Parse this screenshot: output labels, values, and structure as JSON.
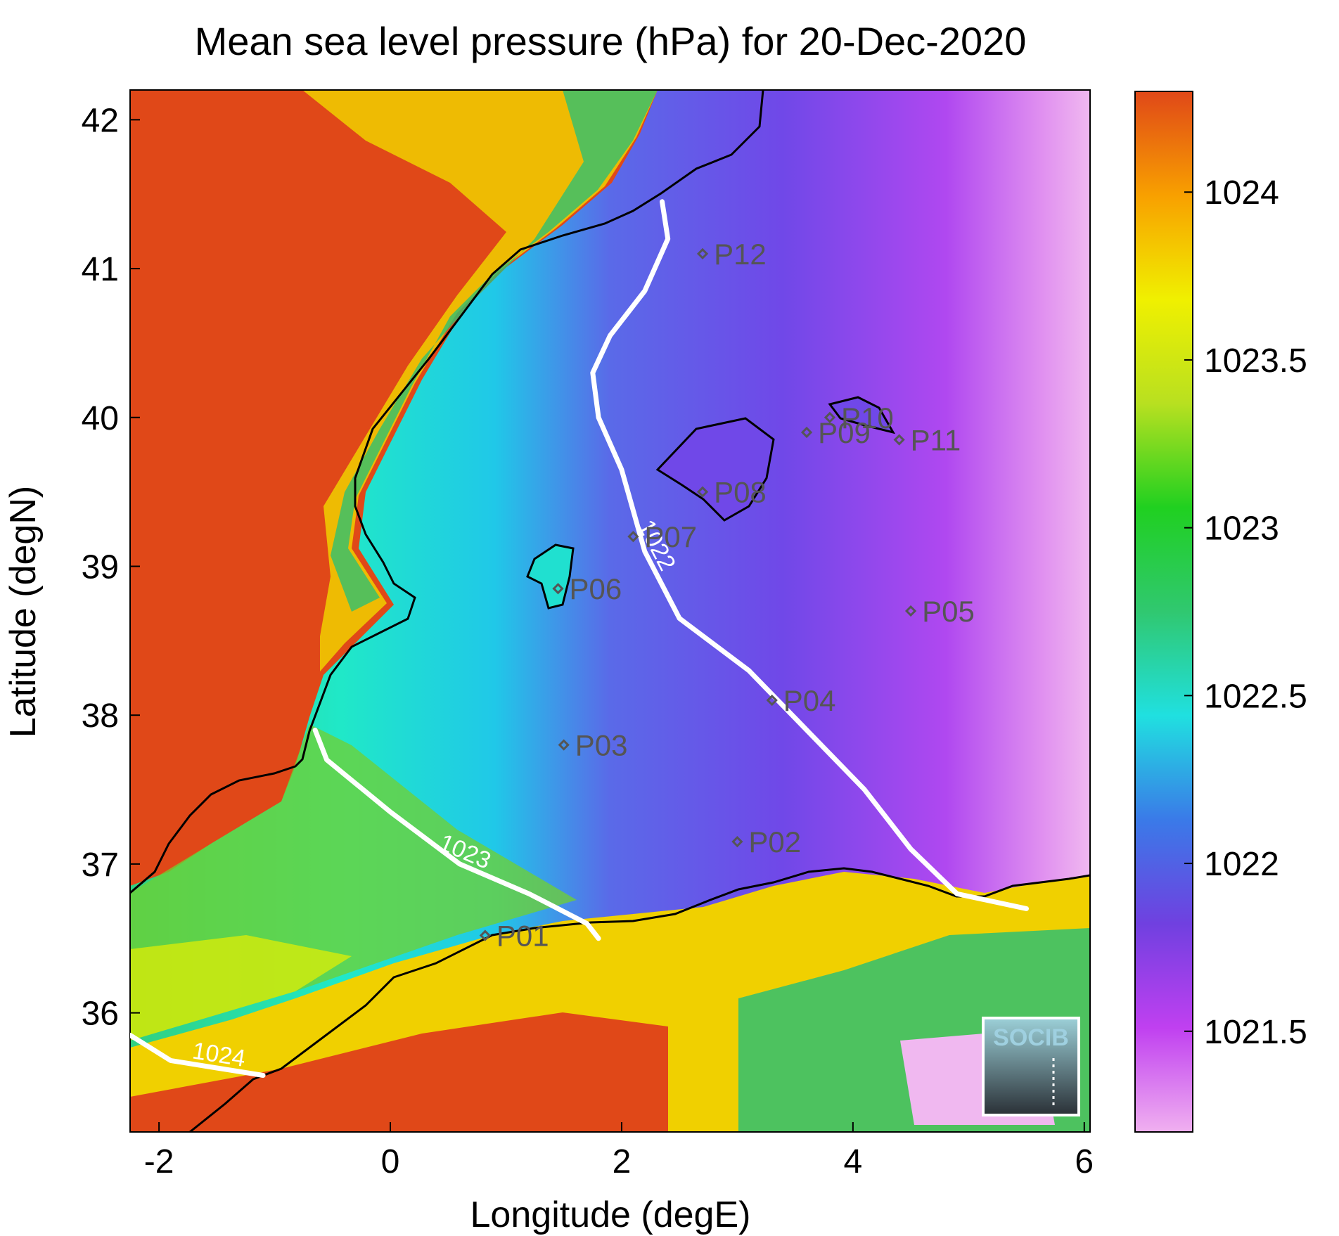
{
  "chart_data": {
    "type": "heatmap",
    "title": "Mean sea level pressure (hPa) for 20-Dec-2020",
    "xlabel": "Longitude (degE)",
    "ylabel": "Latitude (degN)",
    "xlim": [
      -2.25,
      6.05
    ],
    "ylim": [
      35.2,
      42.2
    ],
    "x_ticks": [
      {
        "value": -2,
        "label": "-2"
      },
      {
        "value": 0,
        "label": "0"
      },
      {
        "value": 2,
        "label": "2"
      },
      {
        "value": 4,
        "label": "4"
      },
      {
        "value": 6,
        "label": "6"
      }
    ],
    "y_ticks": [
      {
        "value": 36,
        "label": "36"
      },
      {
        "value": 37,
        "label": "37"
      },
      {
        "value": 38,
        "label": "38"
      },
      {
        "value": 39,
        "label": "39"
      },
      {
        "value": 40,
        "label": "40"
      },
      {
        "value": 41,
        "label": "41"
      },
      {
        "value": 42,
        "label": "42"
      }
    ],
    "colorbar": {
      "range": [
        1021.2,
        1024.3
      ],
      "ticks": [
        {
          "value": 1021.5,
          "label": "1021.5"
        },
        {
          "value": 1022,
          "label": "1022"
        },
        {
          "value": 1022.5,
          "label": "1022.5"
        },
        {
          "value": 1023,
          "label": "1023"
        },
        {
          "value": 1023.5,
          "label": "1023.5"
        },
        {
          "value": 1024,
          "label": "1024"
        }
      ],
      "colors": [
        "#f0b0f0",
        "#c040f0",
        "#7040e0",
        "#3a7ae8",
        "#20e0e0",
        "#30c870",
        "#20d020",
        "#b8e020",
        "#f0f000",
        "#f8a000",
        "#e04818"
      ]
    },
    "contours": [
      {
        "level": 1022,
        "label": "1022",
        "points": [
          [
            2.35,
            41.45
          ],
          [
            2.4,
            41.2
          ],
          [
            2.2,
            40.85
          ],
          [
            1.9,
            40.55
          ],
          [
            1.75,
            40.3
          ],
          [
            1.8,
            40.0
          ],
          [
            2.0,
            39.65
          ],
          [
            2.2,
            39.1
          ],
          [
            2.5,
            38.65
          ],
          [
            3.1,
            38.3
          ],
          [
            3.6,
            37.9
          ],
          [
            4.1,
            37.5
          ],
          [
            4.5,
            37.1
          ],
          [
            4.9,
            36.8
          ],
          [
            5.5,
            36.7
          ]
        ]
      },
      {
        "level": 1023,
        "label": "1023",
        "points": [
          [
            -0.65,
            37.9
          ],
          [
            -0.55,
            37.7
          ],
          [
            0.0,
            37.35
          ],
          [
            0.6,
            37.0
          ],
          [
            1.2,
            36.8
          ],
          [
            1.7,
            36.6
          ],
          [
            1.8,
            36.5
          ]
        ]
      },
      {
        "level": 1024,
        "label": "1024",
        "points": [
          [
            -2.25,
            35.85
          ],
          [
            -1.9,
            35.68
          ],
          [
            -1.5,
            35.63
          ],
          [
            -1.1,
            35.58
          ]
        ]
      }
    ],
    "stations": [
      {
        "name": "P01",
        "lon": 0.82,
        "lat": 36.52
      },
      {
        "name": "P02",
        "lon": 3.0,
        "lat": 37.15
      },
      {
        "name": "P03",
        "lon": 1.5,
        "lat": 37.8
      },
      {
        "name": "P04",
        "lon": 3.3,
        "lat": 38.1
      },
      {
        "name": "P05",
        "lon": 4.5,
        "lat": 38.7
      },
      {
        "name": "P06",
        "lon": 1.45,
        "lat": 38.85
      },
      {
        "name": "P07",
        "lon": 2.1,
        "lat": 39.2
      },
      {
        "name": "P08",
        "lon": 2.7,
        "lat": 39.5
      },
      {
        "name": "P09",
        "lon": 3.6,
        "lat": 39.9
      },
      {
        "name": "P10",
        "lon": 3.8,
        "lat": 40.0
      },
      {
        "name": "P11",
        "lon": 4.4,
        "lat": 39.85
      },
      {
        "name": "P12",
        "lon": 2.7,
        "lat": 41.1
      }
    ]
  },
  "logo_text": "SOCIB",
  "colors": {
    "land_high": "#e04818",
    "coastline": "#000000",
    "contour": "#ffffff",
    "station": "#555555"
  }
}
